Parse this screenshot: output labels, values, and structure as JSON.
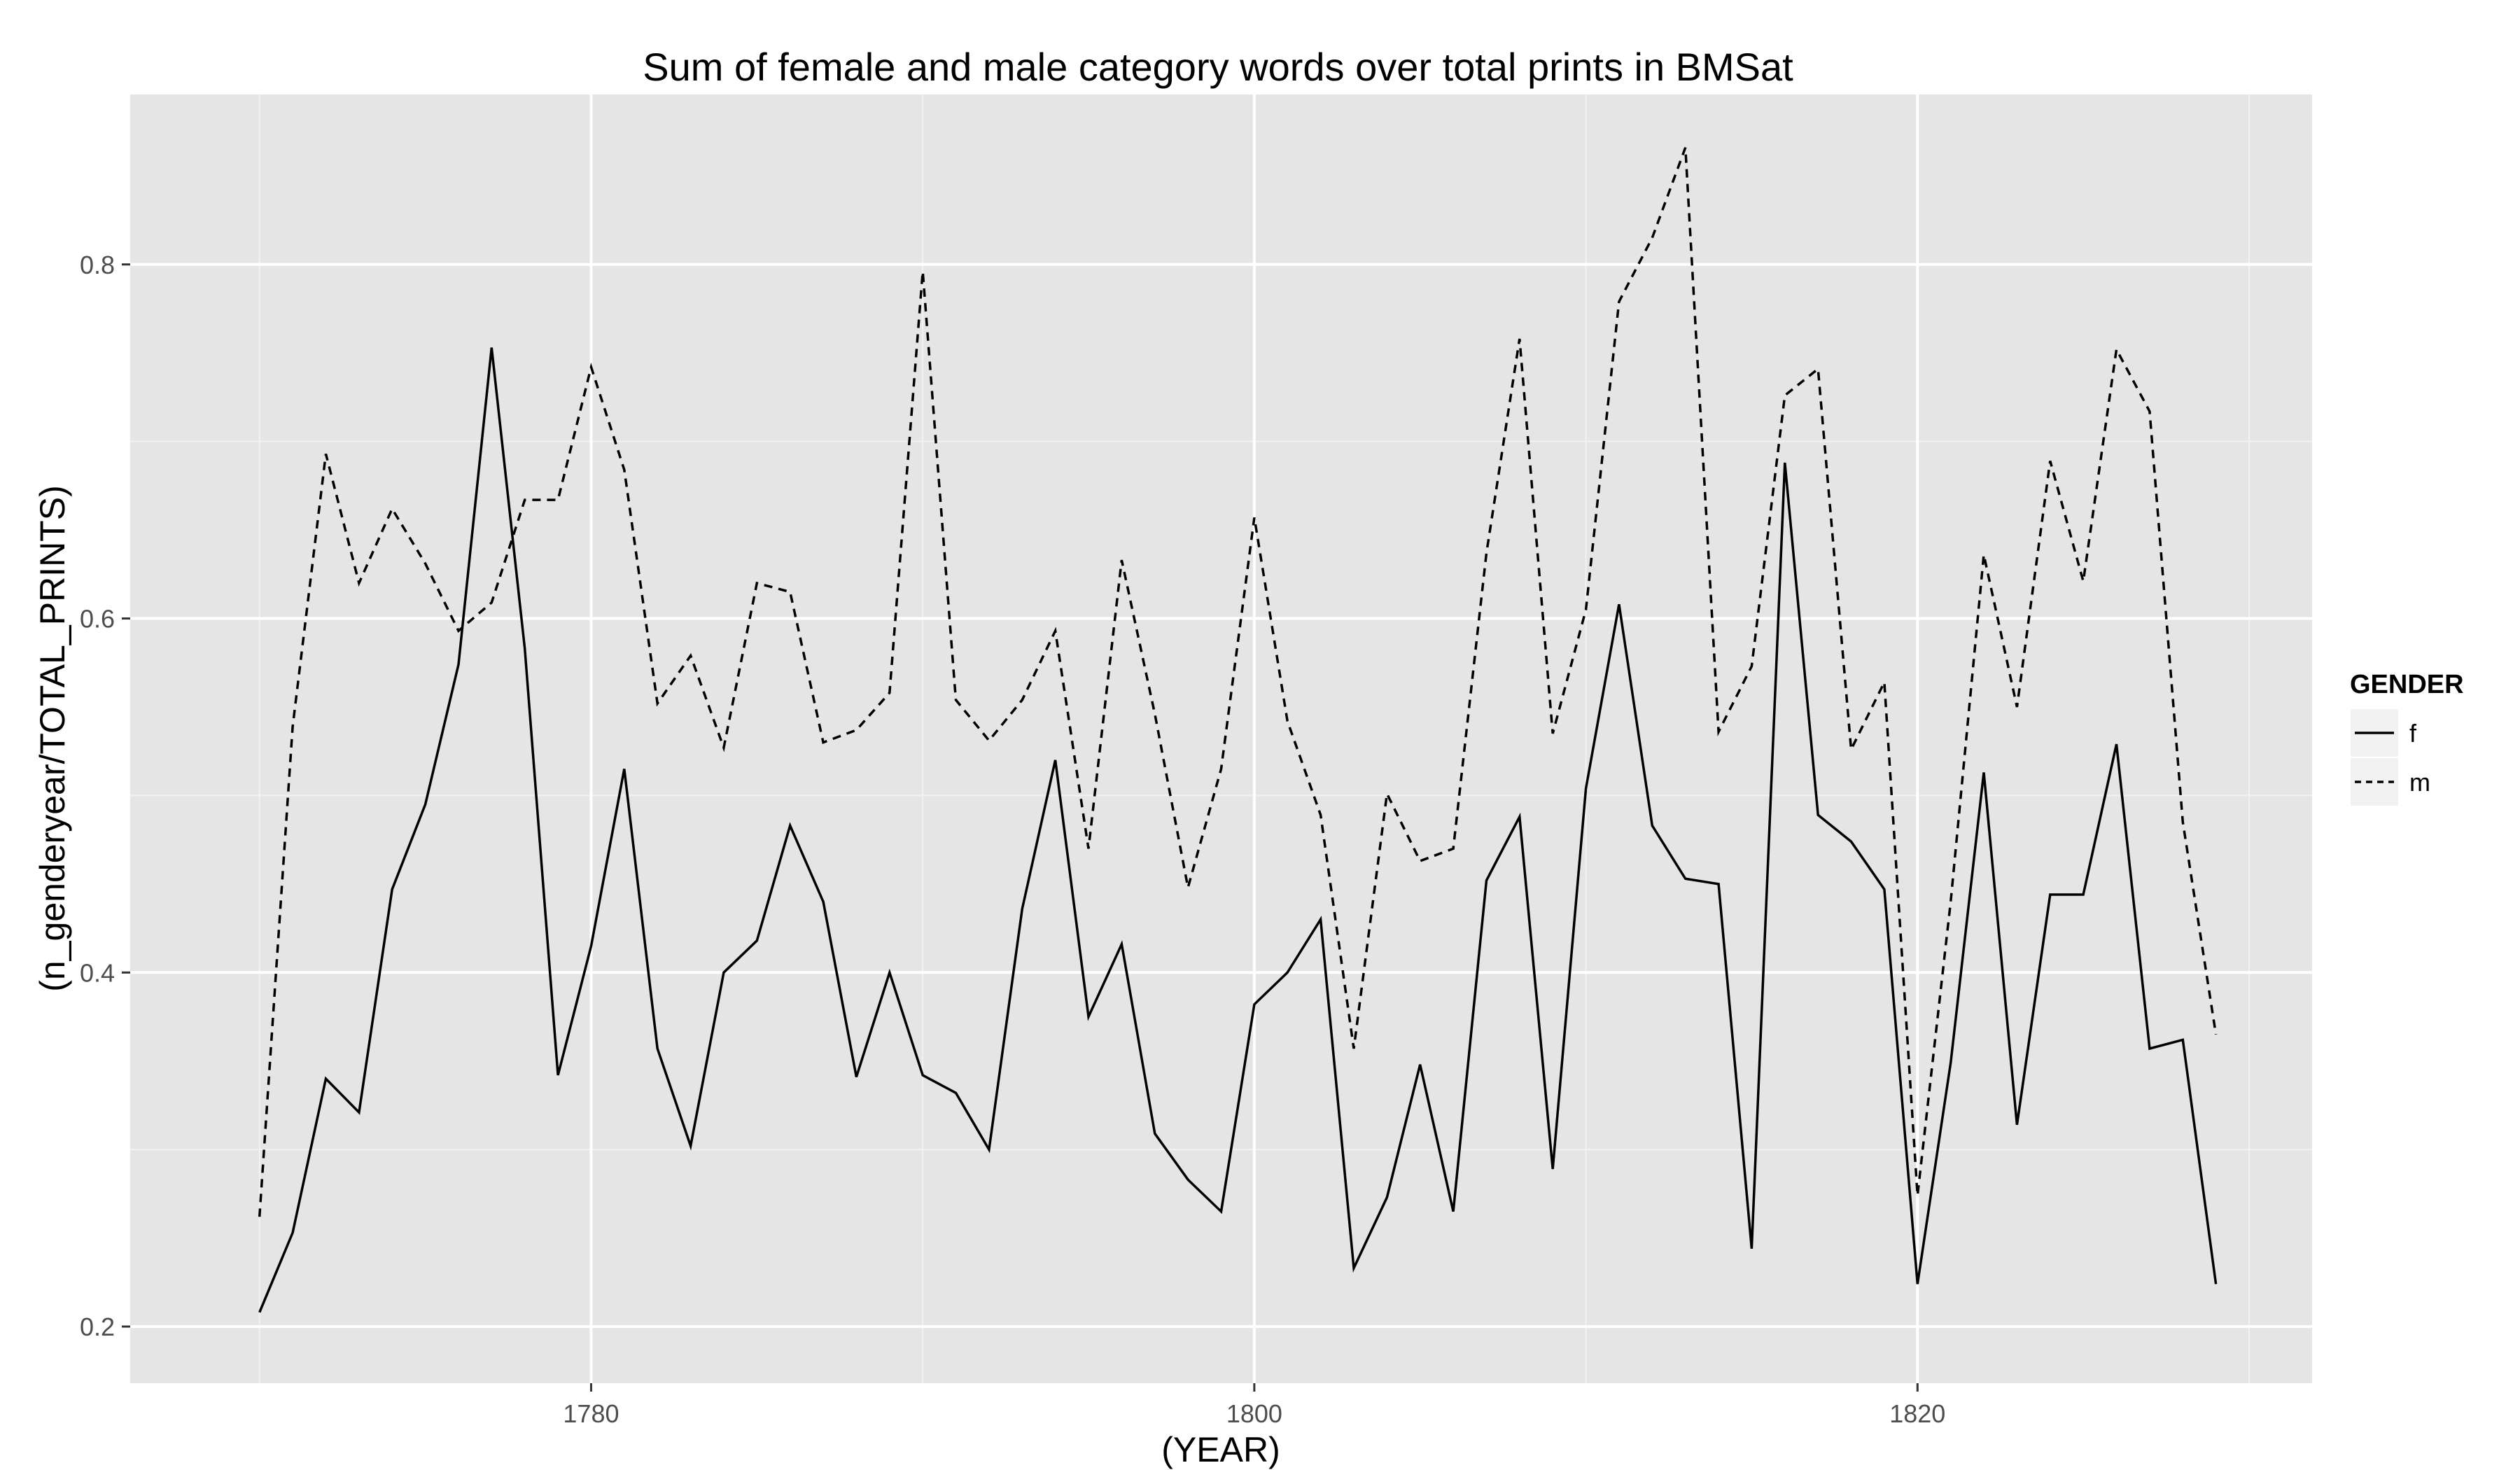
{
  "chart_data": {
    "type": "line",
    "title": "Sum of female and male category words over total prints in BMSat",
    "xlabel": "(YEAR)",
    "ylabel": "(n_genderyear/TOTAL_PRINTS)",
    "xlim": [
      1766.1,
      1831.9
    ],
    "ylim": [
      0.168,
      0.896
    ],
    "x_ticks": [
      1780,
      1800,
      1820
    ],
    "y_ticks": [
      0.2,
      0.4,
      0.6,
      0.8
    ],
    "x_tick_labels": [
      "1780",
      "1800",
      "1820"
    ],
    "y_tick_labels": [
      "0.2",
      "0.4",
      "0.6",
      "0.8"
    ],
    "grid": true,
    "legend": {
      "title": "GENDER",
      "position": "right"
    },
    "x": [
      1770,
      1771,
      1772,
      1773,
      1774,
      1775,
      1776,
      1777,
      1778,
      1779,
      1780,
      1781,
      1782,
      1783,
      1784,
      1785,
      1786,
      1787,
      1788,
      1789,
      1790,
      1791,
      1792,
      1793,
      1794,
      1795,
      1796,
      1797,
      1798,
      1799,
      1800,
      1801,
      1802,
      1803,
      1804,
      1805,
      1806,
      1807,
      1808,
      1809,
      1810,
      1811,
      1812,
      1813,
      1814,
      1815,
      1816,
      1817,
      1818,
      1819,
      1820,
      1821,
      1822,
      1823,
      1824,
      1825,
      1826,
      1827,
      1828,
      1829
    ],
    "series": [
      {
        "name": "f",
        "linestyle": "solid",
        "color": "#000000",
        "values": [
          0.208,
          0.253,
          0.34,
          0.321,
          0.447,
          0.495,
          0.574,
          0.753,
          0.583,
          0.342,
          0.415,
          0.515,
          0.357,
          0.302,
          0.4,
          0.418,
          0.483,
          0.44,
          0.341,
          0.4,
          0.342,
          0.332,
          0.3,
          0.436,
          0.52,
          0.375,
          0.416,
          0.309,
          0.283,
          0.265,
          0.382,
          0.4,
          0.43,
          0.233,
          0.273,
          0.348,
          0.265,
          0.452,
          0.488,
          0.289,
          0.504,
          0.608,
          0.483,
          0.453,
          0.45,
          0.244,
          0.688,
          0.489,
          0.474,
          0.447,
          0.224,
          0.349,
          0.513,
          0.314,
          0.444,
          0.444,
          0.529,
          0.357,
          0.362,
          0.224
        ]
      },
      {
        "name": "m",
        "linestyle": "dashed",
        "color": "#000000",
        "values": [
          0.262,
          0.539,
          0.693,
          0.62,
          0.662,
          0.631,
          0.593,
          0.609,
          0.667,
          0.667,
          0.742,
          0.684,
          0.552,
          0.579,
          0.527,
          0.62,
          0.615,
          0.53,
          0.537,
          0.558,
          0.796,
          0.554,
          0.531,
          0.554,
          0.593,
          0.47,
          0.633,
          0.546,
          0.448,
          0.515,
          0.657,
          0.542,
          0.489,
          0.357,
          0.501,
          0.463,
          0.47,
          0.637,
          0.758,
          0.535,
          0.605,
          0.779,
          0.815,
          0.866,
          0.536,
          0.573,
          0.726,
          0.741,
          0.526,
          0.564,
          0.274,
          0.44,
          0.636,
          0.55,
          0.689,
          0.621,
          0.752,
          0.717,
          0.485,
          0.365
        ]
      }
    ]
  }
}
